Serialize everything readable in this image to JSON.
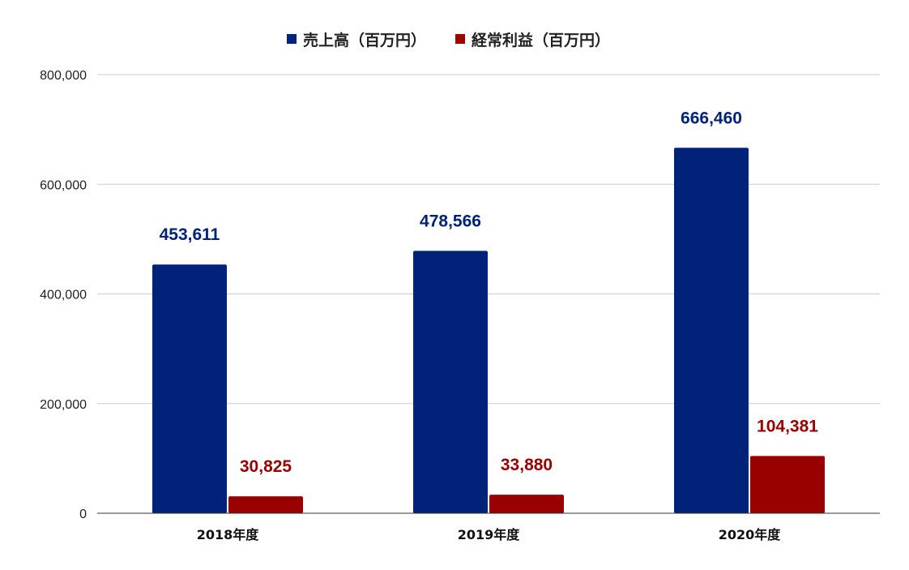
{
  "chart_data": {
    "type": "bar",
    "categories": [
      "2018年度",
      "2019年度",
      "2020年度"
    ],
    "series": [
      {
        "name": "売上高（百万円）",
        "values": [
          453611,
          478566,
          666460
        ],
        "labels": [
          "453,611",
          "478,566",
          "666,460"
        ],
        "color": "#00237a"
      },
      {
        "name": "経常利益（百万円）",
        "values": [
          30825,
          33880,
          104381
        ],
        "labels": [
          "30,825",
          "33,880",
          "104,381"
        ],
        "color": "#990000"
      }
    ],
    "yticks": [
      0,
      200000,
      400000,
      600000,
      800000
    ],
    "ytick_labels": [
      "0",
      "200,000",
      "400,000",
      "600,000",
      "800,000"
    ],
    "ylim": [
      0,
      800000
    ],
    "grid": true,
    "legend_position": "top-center"
  }
}
